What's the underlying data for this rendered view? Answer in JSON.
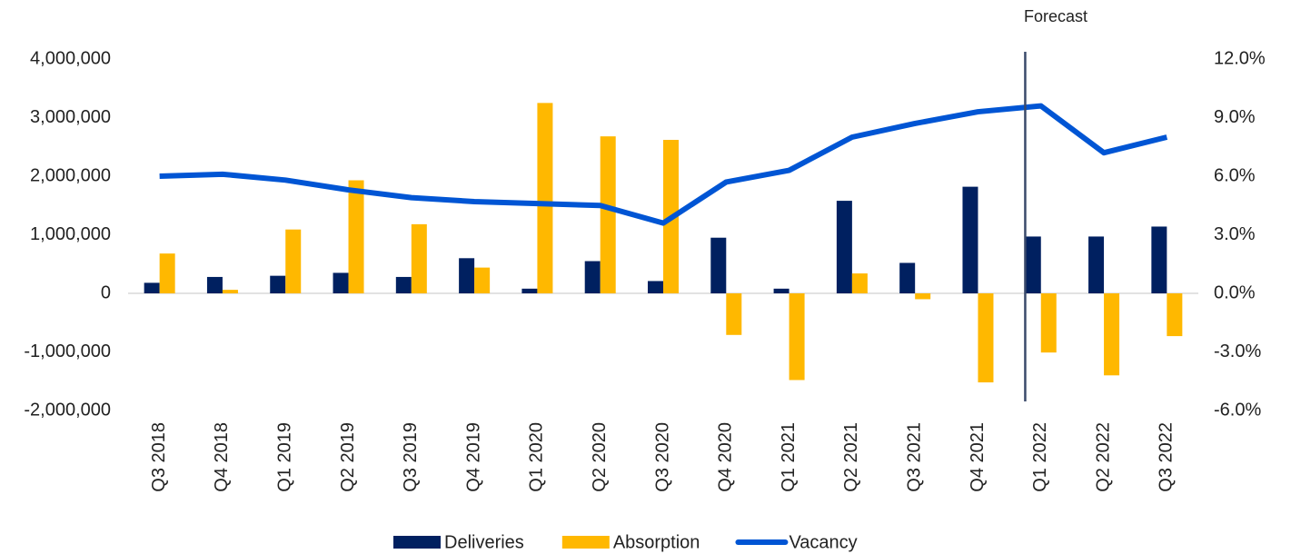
{
  "chart_data": {
    "type": "bar_line",
    "annotation": "Forecast",
    "categories": [
      "Q3 2018",
      "Q4 2018",
      "Q1 2019",
      "Q2 2019",
      "Q3 2019",
      "Q4 2019",
      "Q1 2020",
      "Q2 2020",
      "Q3 2020",
      "Q4 2020",
      "Q1 2021",
      "Q2 2021",
      "Q3 2021",
      "Q4 2021",
      "Q1 2022",
      "Q2 2022",
      "Q3 2022"
    ],
    "series": [
      {
        "name": "Deliveries",
        "type": "bar",
        "color": "#002060",
        "values": [
          180000,
          280000,
          300000,
          350000,
          280000,
          600000,
          80000,
          550000,
          210000,
          950000,
          80000,
          1580000,
          520000,
          1820000,
          970000,
          970000,
          1140000
        ]
      },
      {
        "name": "Absorption",
        "type": "bar",
        "color": "#FFB800",
        "values": [
          680000,
          60000,
          1090000,
          1930000,
          1180000,
          440000,
          3250000,
          2680000,
          2620000,
          -710000,
          -1480000,
          340000,
          -100000,
          -1520000,
          -1010000,
          -1400000,
          -730000
        ]
      },
      {
        "name": "Vacancy",
        "type": "line",
        "axis": "y2",
        "color": "#0055D4",
        "values": [
          6.0,
          6.1,
          5.8,
          5.3,
          4.9,
          4.7,
          4.6,
          4.5,
          3.6,
          5.7,
          6.3,
          8.0,
          8.7,
          9.3,
          9.6,
          7.2,
          8.0
        ]
      }
    ],
    "ylim": [
      -2000000,
      4000000
    ],
    "yticks": [
      {
        "value": -2000000,
        "label": "-2,000,000"
      },
      {
        "value": -1000000,
        "label": "-1,000,000"
      },
      0,
      {
        "value": 1000000,
        "label": "1,000,000"
      },
      {
        "value": 2000000,
        "label": "2,000,000"
      },
      {
        "value": 3000000,
        "label": "3,000,000"
      },
      {
        "value": 4000000,
        "label": "4,000,000"
      }
    ],
    "y2lim": [
      -6,
      12
    ],
    "y2ticks": [
      {
        "value": -6,
        "label": "-6.0%"
      },
      {
        "value": -3,
        "label": "-3.0%"
      },
      {
        "value": 0,
        "label": "0.0%"
      },
      {
        "value": 3,
        "label": "3.0%"
      },
      {
        "value": 6,
        "label": "6.0%"
      },
      {
        "value": 9,
        "label": "9.0%"
      },
      {
        "value": 12,
        "label": "12.0%"
      }
    ],
    "legend": "bottom"
  }
}
